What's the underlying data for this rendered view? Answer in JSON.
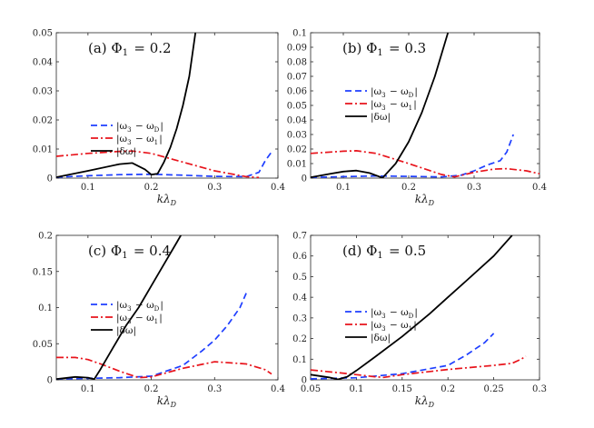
{
  "chart_data": [
    {
      "type": "line",
      "title": "(a) Φ1 = 0.2",
      "xlabel": "kλD",
      "ylabel": "",
      "xlim": [
        0.05,
        0.4
      ],
      "ylim": [
        0,
        0.05
      ],
      "xticks": [
        0.1,
        0.2,
        0.3,
        0.4
      ],
      "xtick_labels": [
        "0.1",
        "0.2",
        "0.3",
        "0.4"
      ],
      "yticks": [
        0,
        0.01,
        0.02,
        0.03,
        0.04,
        0.05
      ],
      "ytick_labels": [
        "0",
        "0.01",
        "0.02",
        "0.03",
        "0.04",
        "0.05"
      ],
      "legend": [
        "|ω3 − ωD|",
        "|ω3 − ω1|",
        "|δω|"
      ],
      "series": [
        {
          "name": "|ω3 − ωD|",
          "style": "dashed",
          "color": "#1f3fff",
          "x": [
            0.05,
            0.1,
            0.15,
            0.2,
            0.25,
            0.3,
            0.35,
            0.37,
            0.38,
            0.39
          ],
          "y": [
            0.0003,
            0.0008,
            0.0012,
            0.0013,
            0.001,
            0.0006,
            0.0005,
            0.002,
            0.006,
            0.009
          ]
        },
        {
          "name": "|ω3 − ω1|",
          "style": "dashdot",
          "color": "#e8141c",
          "x": [
            0.05,
            0.1,
            0.15,
            0.17,
            0.2,
            0.25,
            0.3,
            0.35,
            0.37
          ],
          "y": [
            0.0075,
            0.0085,
            0.0092,
            0.0093,
            0.0085,
            0.0055,
            0.0025,
            0.0005,
            0.0002
          ]
        },
        {
          "name": "|δω|",
          "style": "solid",
          "color": "#000000",
          "x": [
            0.05,
            0.1,
            0.15,
            0.17,
            0.19,
            0.2,
            0.21,
            0.22,
            0.23,
            0.24,
            0.25,
            0.26,
            0.27
          ],
          "y": [
            0.0003,
            0.0025,
            0.0048,
            0.0052,
            0.003,
            0.0012,
            0.0015,
            0.0055,
            0.0105,
            0.017,
            0.025,
            0.035,
            0.0505
          ]
        }
      ]
    },
    {
      "type": "line",
      "title": "(b) Φ1 = 0.3",
      "xlabel": "kλD",
      "ylabel": "",
      "xlim": [
        0.05,
        0.4
      ],
      "ylim": [
        0,
        0.1
      ],
      "xticks": [
        0.1,
        0.2,
        0.3,
        0.4
      ],
      "xtick_labels": [
        "0.1",
        "0.2",
        "0.3",
        "0.4"
      ],
      "yticks": [
        0,
        0.01,
        0.02,
        0.03,
        0.04,
        0.05,
        0.06,
        0.07,
        0.08,
        0.09,
        0.1
      ],
      "ytick_labels": [
        "0",
        "0.01",
        "0.02",
        "0.03",
        "0.04",
        "0.05",
        "0.06",
        "0.07",
        "0.08",
        "0.09",
        "0.1"
      ],
      "legend": [
        "|ω3 − ωD|",
        "|ω3 − ω1|",
        "|δω|"
      ],
      "series": [
        {
          "name": "|ω3 − ωD|",
          "style": "dashed",
          "color": "#1f3fff",
          "x": [
            0.05,
            0.1,
            0.15,
            0.2,
            0.25,
            0.28,
            0.3,
            0.32,
            0.34,
            0.35,
            0.36
          ],
          "y": [
            0.0005,
            0.001,
            0.0015,
            0.0012,
            0.0008,
            0.002,
            0.005,
            0.009,
            0.012,
            0.018,
            0.03
          ]
        },
        {
          "name": "|ω3 − ω1|",
          "style": "dashdot",
          "color": "#e8141c",
          "x": [
            0.05,
            0.1,
            0.12,
            0.15,
            0.2,
            0.25,
            0.27,
            0.3,
            0.33,
            0.35,
            0.38,
            0.4
          ],
          "y": [
            0.017,
            0.0185,
            0.0188,
            0.017,
            0.01,
            0.0025,
            0.0008,
            0.004,
            0.0062,
            0.0065,
            0.005,
            0.003
          ]
        },
        {
          "name": "|δω|",
          "style": "solid",
          "color": "#000000",
          "x": [
            0.05,
            0.08,
            0.1,
            0.12,
            0.14,
            0.16,
            0.18,
            0.2,
            0.22,
            0.24,
            0.25,
            0.26
          ],
          "y": [
            0.0005,
            0.003,
            0.0045,
            0.0052,
            0.0035,
            0.0002,
            0.01,
            0.025,
            0.045,
            0.07,
            0.085,
            0.1
          ]
        }
      ]
    },
    {
      "type": "line",
      "title": "(c) Φ1 = 0.4",
      "xlabel": "kλD",
      "ylabel": "",
      "xlim": [
        0.05,
        0.4
      ],
      "ylim": [
        0,
        0.2
      ],
      "xticks": [
        0.1,
        0.2,
        0.3,
        0.4
      ],
      "xtick_labels": [
        "0.1",
        "0.2",
        "0.3",
        "0.4"
      ],
      "yticks": [
        0,
        0.05,
        0.1,
        0.15,
        0.2
      ],
      "ytick_labels": [
        "0",
        "0.05",
        "0.1",
        "0.15",
        "0.2"
      ],
      "legend": [
        "|ω3 − ωD|",
        "|ω3 − ω1|",
        "|δω|"
      ],
      "series": [
        {
          "name": "|ω3 − ωD|",
          "style": "dashed",
          "color": "#1f3fff",
          "x": [
            0.05,
            0.1,
            0.15,
            0.2,
            0.25,
            0.28,
            0.3,
            0.32,
            0.34,
            0.35
          ],
          "y": [
            0.001,
            0.002,
            0.003,
            0.005,
            0.02,
            0.04,
            0.055,
            0.075,
            0.1,
            0.12
          ]
        },
        {
          "name": "|ω3 − ω1|",
          "style": "dashdot",
          "color": "#e8141c",
          "x": [
            0.05,
            0.08,
            0.1,
            0.12,
            0.15,
            0.18,
            0.2,
            0.25,
            0.3,
            0.35,
            0.38,
            0.39
          ],
          "y": [
            0.031,
            0.031,
            0.028,
            0.022,
            0.012,
            0.003,
            0.004,
            0.016,
            0.025,
            0.022,
            0.014,
            0.008
          ]
        },
        {
          "name": "|δω|",
          "style": "solid",
          "color": "#000000",
          "x": [
            0.05,
            0.08,
            0.1,
            0.11,
            0.12,
            0.14,
            0.16,
            0.18,
            0.2,
            0.22,
            0.24,
            0.25
          ],
          "y": [
            0.001,
            0.004,
            0.003,
            0.001,
            0.015,
            0.045,
            0.075,
            0.1,
            0.13,
            0.16,
            0.19,
            0.205
          ]
        }
      ]
    },
    {
      "type": "line",
      "title": "(d) Φ1 = 0.5",
      "xlabel": "kλD",
      "ylabel": "",
      "xlim": [
        0.05,
        0.3
      ],
      "ylim": [
        0,
        0.7
      ],
      "xticks": [
        0.05,
        0.1,
        0.15,
        0.2,
        0.25,
        0.3
      ],
      "xtick_labels": [
        "0.05",
        "0.1",
        "0.15",
        "0.2",
        "0.25",
        "0.3"
      ],
      "yticks": [
        0,
        0.1,
        0.2,
        0.3,
        0.4,
        0.5,
        0.6,
        0.7
      ],
      "ytick_labels": [
        "0",
        "0.1",
        "0.2",
        "0.3",
        "0.4",
        "0.5",
        "0.6",
        "0.7"
      ],
      "legend": [
        "|ω3 − ωD|",
        "|ω3 − ω1|",
        "|δω|"
      ],
      "series": [
        {
          "name": "|ω3 − ωD|",
          "style": "dashed",
          "color": "#1f3fff",
          "x": [
            0.05,
            0.1,
            0.15,
            0.2,
            0.22,
            0.24,
            0.25
          ],
          "y": [
            0.005,
            0.01,
            0.03,
            0.07,
            0.12,
            0.18,
            0.225
          ]
        },
        {
          "name": "|ω3 − ω1|",
          "style": "dashdot",
          "color": "#e8141c",
          "x": [
            0.05,
            0.08,
            0.1,
            0.12,
            0.13,
            0.15,
            0.2,
            0.25,
            0.27,
            0.28,
            0.285
          ],
          "y": [
            0.048,
            0.035,
            0.025,
            0.015,
            0.012,
            0.025,
            0.05,
            0.07,
            0.08,
            0.1,
            0.115
          ]
        },
        {
          "name": "|δω|",
          "style": "solid",
          "color": "#000000",
          "x": [
            0.05,
            0.07,
            0.08,
            0.09,
            0.1,
            0.12,
            0.15,
            0.18,
            0.2,
            0.22,
            0.25,
            0.27
          ],
          "y": [
            0.025,
            0.012,
            0.002,
            0.015,
            0.045,
            0.11,
            0.21,
            0.32,
            0.4,
            0.48,
            0.6,
            0.7
          ]
        }
      ]
    }
  ]
}
